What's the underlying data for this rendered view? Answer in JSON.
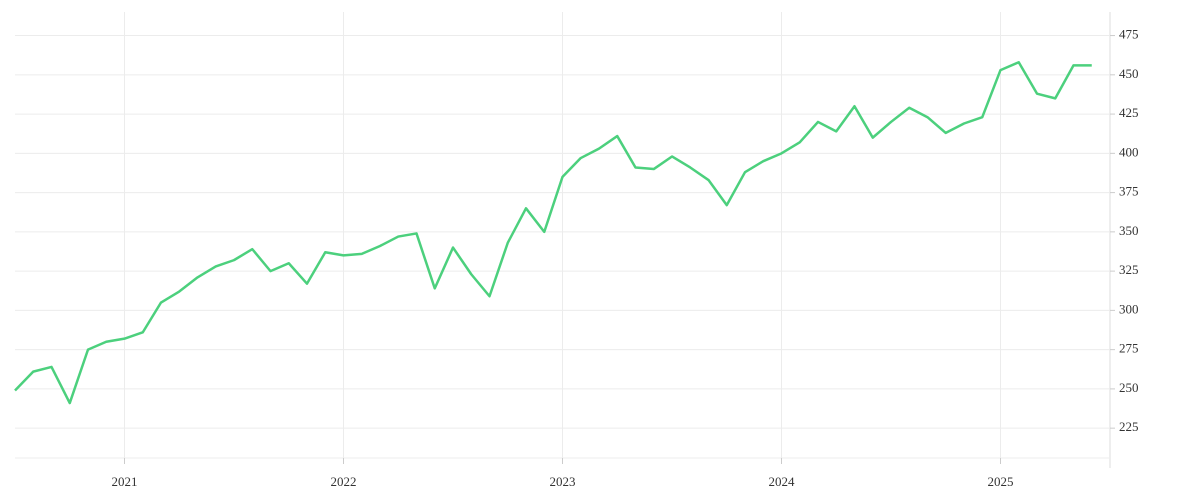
{
  "chart_data": {
    "type": "line",
    "x": [
      2020.5,
      2020.5833,
      2020.6667,
      2020.75,
      2020.8333,
      2020.9167,
      2021,
      2021.0833,
      2021.1667,
      2021.25,
      2021.3333,
      2021.4167,
      2021.5,
      2021.5833,
      2021.6667,
      2021.75,
      2021.8333,
      2021.9167,
      2022,
      2022.0833,
      2022.1667,
      2022.25,
      2022.3333,
      2022.4167,
      2022.5,
      2022.5833,
      2022.6667,
      2022.75,
      2022.8333,
      2022.9167,
      2023,
      2023.0833,
      2023.1667,
      2023.25,
      2023.3333,
      2023.4167,
      2023.5,
      2023.5833,
      2023.6667,
      2023.75,
      2023.8333,
      2023.9167,
      2024,
      2024.0833,
      2024.1667,
      2024.25,
      2024.3333,
      2024.4167,
      2024.5,
      2024.5833,
      2024.6667,
      2024.75,
      2024.8333,
      2024.9167,
      2025,
      2025.0833,
      2025.1667,
      2025.25,
      2025.3333,
      2025.4167
    ],
    "series": [
      {
        "color": "#4cd07d",
        "values": [
          249,
          261,
          264,
          241,
          275,
          280,
          282,
          286,
          305,
          312,
          321,
          328,
          332,
          339,
          325,
          330,
          317,
          337,
          335,
          336,
          341,
          347,
          349,
          314,
          340,
          323,
          309,
          343,
          365,
          350,
          385,
          397,
          403,
          411,
          391,
          390,
          398,
          391,
          383,
          367,
          388,
          395,
          400,
          407,
          420,
          414,
          430,
          410,
          420,
          429,
          423,
          413,
          419,
          423,
          453,
          458,
          438,
          435,
          456,
          456
        ]
      }
    ],
    "xlim": [
      2020.5,
      2025.5
    ],
    "xticks": [
      2021,
      2022,
      2023,
      2024,
      2025
    ],
    "ylim": [
      206,
      490
    ],
    "yticks": [
      225,
      250,
      275,
      300,
      325,
      350,
      375,
      400,
      425,
      450,
      475
    ],
    "grid": true
  }
}
